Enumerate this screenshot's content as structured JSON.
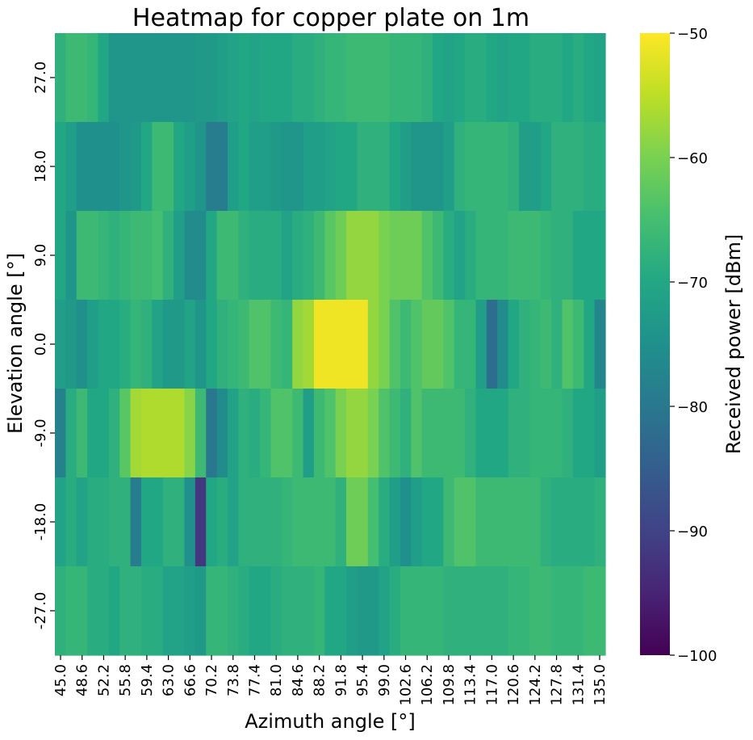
{
  "chart_data": {
    "type": "heatmap",
    "title": "Heatmap for copper plate on 1m",
    "xlabel": "Azimuth angle [°]",
    "ylabel": "Elevation angle [°]",
    "colorbar_label": "Received power [dBm]",
    "colormap": "viridis",
    "vmin": -100,
    "vmax": -50,
    "colorbar_ticks": [
      -50,
      -60,
      -70,
      -80,
      -90,
      -100
    ],
    "colorbar_tick_labels": [
      "−50",
      "−60",
      "−70",
      "−80",
      "−90",
      "−100"
    ],
    "x_tick_labels": [
      "45.0",
      "48.6",
      "52.2",
      "55.8",
      "59.4",
      "63.0",
      "66.6",
      "70.2",
      "73.8",
      "77.4",
      "81.0",
      "84.6",
      "88.2",
      "91.8",
      "95.4",
      "99.0",
      "102.6",
      "106.2",
      "109.8",
      "113.4",
      "117.0",
      "120.6",
      "124.2",
      "127.8",
      "131.4",
      "135.0"
    ],
    "y_tick_labels": [
      "27.0",
      "18.0",
      "9.0",
      "0.0",
      "-9.0",
      "-18.0",
      "-27.0"
    ],
    "elevation_rows": [
      {
        "elevation": 27.0,
        "values": [
          -68,
          -66,
          -66,
          -67,
          -70,
          -74,
          -74,
          -74,
          -74,
          -74,
          -74,
          -74,
          -74,
          -73,
          -73,
          -72,
          -71,
          -70,
          -71,
          -70,
          -70,
          -70,
          -69,
          -69,
          -68,
          -67,
          -67,
          -66,
          -66,
          -66,
          -66,
          -67,
          -67,
          -67,
          -68,
          -70,
          -71,
          -70,
          -69,
          -69,
          -70,
          -71,
          -70,
          -70,
          -69,
          -69,
          -69,
          -70,
          -69,
          -70,
          -71
        ]
      },
      {
        "elevation": 18.0,
        "values": [
          -70,
          -72,
          -75,
          -75,
          -75,
          -75,
          -74,
          -73,
          -70,
          -66,
          -66,
          -70,
          -72,
          -74,
          -79,
          -79,
          -72,
          -70,
          -72,
          -72,
          -73,
          -74,
          -74,
          -72,
          -72,
          -71,
          -70,
          -70,
          -68,
          -68,
          -68,
          -70,
          -72,
          -74,
          -74,
          -74,
          -72,
          -68,
          -67,
          -67,
          -67,
          -67,
          -68,
          -72,
          -72,
          -70,
          -68,
          -68,
          -68,
          -69,
          -69
        ]
      },
      {
        "elevation": 9.0,
        "values": [
          -70,
          -74,
          -66,
          -66,
          -67,
          -68,
          -67,
          -66,
          -66,
          -65,
          -68,
          -72,
          -76,
          -76,
          -70,
          -66,
          -66,
          -68,
          -69,
          -69,
          -69,
          -71,
          -69,
          -68,
          -66,
          -63,
          -61,
          -58,
          -58,
          -58,
          -60,
          -61,
          -61,
          -61,
          -64,
          -66,
          -69,
          -71,
          -69,
          -67,
          -67,
          -67,
          -66,
          -66,
          -66,
          -67,
          -68,
          -68,
          -70,
          -70,
          -70
        ]
      },
      {
        "elevation": 0.0,
        "values": [
          -72,
          -73,
          -75,
          -72,
          -70,
          -70,
          -69,
          -67,
          -68,
          -71,
          -73,
          -73,
          -71,
          -74,
          -70,
          -68,
          -67,
          -66,
          -64,
          -64,
          -66,
          -67,
          -58,
          -57,
          -51,
          -51,
          -51,
          -51,
          -51,
          -58,
          -60,
          -64,
          -66,
          -64,
          -62,
          -62,
          -64,
          -67,
          -67,
          -72,
          -82,
          -76,
          -70,
          -68,
          -67,
          -66,
          -68,
          -64,
          -66,
          -70,
          -77
        ]
      },
      {
        "elevation": -9.0,
        "values": [
          -78,
          -69,
          -66,
          -70,
          -70,
          -68,
          -63,
          -57,
          -56,
          -56,
          -56,
          -56,
          -59,
          -66,
          -80,
          -76,
          -71,
          -68,
          -69,
          -67,
          -64,
          -64,
          -66,
          -72,
          -66,
          -64,
          -60,
          -58,
          -58,
          -60,
          -64,
          -66,
          -68,
          -64,
          -66,
          -66,
          -66,
          -66,
          -68,
          -70,
          -70,
          -70,
          -68,
          -68,
          -67,
          -67,
          -67,
          -68,
          -70,
          -70,
          -72
        ]
      },
      {
        "elevation": -18.0,
        "values": [
          -71,
          -69,
          -71,
          -69,
          -69,
          -68,
          -68,
          -79,
          -70,
          -70,
          -68,
          -68,
          -75,
          -92,
          -70,
          -69,
          -71,
          -68,
          -68,
          -68,
          -68,
          -67,
          -66,
          -66,
          -66,
          -66,
          -68,
          -61,
          -61,
          -65,
          -69,
          -72,
          -75,
          -72,
          -70,
          -70,
          -66,
          -64,
          -64,
          -66,
          -66,
          -66,
          -66,
          -66,
          -66,
          -68,
          -69,
          -69,
          -69,
          -69,
          -68
        ]
      },
      {
        "elevation": -27.0,
        "values": [
          -68,
          -67,
          -67,
          -69,
          -69,
          -70,
          -68,
          -68,
          -69,
          -69,
          -71,
          -71,
          -72,
          -73,
          -67,
          -67,
          -68,
          -69,
          -70,
          -70,
          -69,
          -68,
          -68,
          -68,
          -67,
          -70,
          -70,
          -72,
          -73,
          -73,
          -71,
          -69,
          -67,
          -67,
          -67,
          -67,
          -68,
          -68,
          -68,
          -68,
          -68,
          -68,
          -67,
          -67,
          -66,
          -66,
          -67,
          -67,
          -67,
          -66,
          -66
        ]
      }
    ]
  }
}
